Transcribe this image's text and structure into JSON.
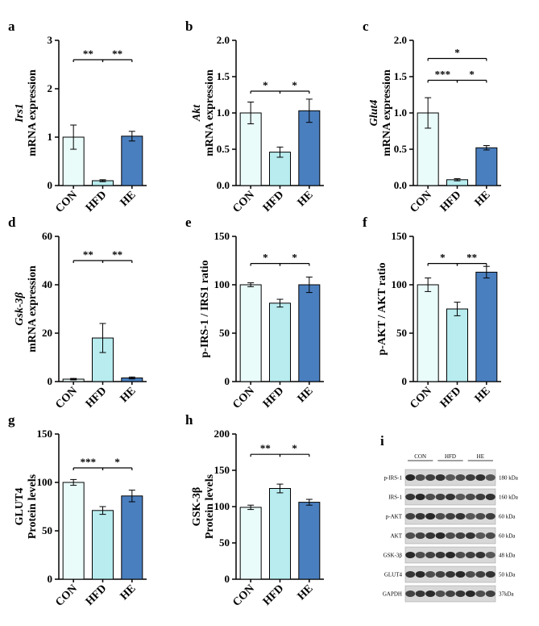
{
  "chart_data": [
    {
      "type": "bar",
      "panel": "a",
      "ylabel": [
        "Irs1",
        "mRNA expression"
      ],
      "ylabel_italic_first": true,
      "categories": [
        "CON",
        "HFD",
        "HE"
      ],
      "values": [
        1.0,
        0.1,
        1.02
      ],
      "errors": [
        0.25,
        0.02,
        0.1
      ],
      "colors": [
        "#eafcfa",
        "#b8ecef",
        "#4a7fbf"
      ],
      "ylim": [
        0,
        3
      ],
      "yticks": [
        0,
        1,
        2,
        3
      ],
      "significance": [
        {
          "between": [
            "CON",
            "HFD"
          ],
          "label": "**",
          "level": 2.6
        },
        {
          "between": [
            "HFD",
            "HE"
          ],
          "label": "**",
          "level": 2.6
        }
      ]
    },
    {
      "type": "bar",
      "panel": "b",
      "ylabel": [
        "Akt",
        "mRNA expression"
      ],
      "ylabel_italic_first": true,
      "categories": [
        "CON",
        "HFD",
        "HE"
      ],
      "values": [
        1.0,
        0.46,
        1.03
      ],
      "errors": [
        0.15,
        0.07,
        0.16
      ],
      "colors": [
        "#eafcfa",
        "#b8ecef",
        "#4a7fbf"
      ],
      "ylim": [
        0,
        2
      ],
      "yticks": [
        {
          "value": 0,
          "label": "0.0"
        },
        0.5,
        {
          "value": 1,
          "label": "1.0"
        },
        1.5,
        {
          "value": 2,
          "label": "2.0"
        }
      ],
      "significance": [
        {
          "between": [
            "CON",
            "HFD"
          ],
          "label": "*",
          "level": 1.3
        },
        {
          "between": [
            "HFD",
            "HE"
          ],
          "label": "*",
          "level": 1.3
        }
      ]
    },
    {
      "type": "bar",
      "panel": "c",
      "ylabel": [
        "Glut4",
        "mRNA expression"
      ],
      "ylabel_italic_first": true,
      "categories": [
        "CON",
        "HFD",
        "HE"
      ],
      "values": [
        1.0,
        0.08,
        0.52
      ],
      "errors": [
        0.21,
        0.015,
        0.03
      ],
      "colors": [
        "#eafcfa",
        "#b8ecef",
        "#4a7fbf"
      ],
      "ylim": [
        0,
        2
      ],
      "yticks": [
        {
          "value": 0,
          "label": "0.0"
        },
        0.5,
        {
          "value": 1,
          "label": "1.0"
        },
        1.5,
        {
          "value": 2,
          "label": "2.0"
        }
      ],
      "significance": [
        {
          "between": [
            "CON",
            "HE"
          ],
          "label": "*",
          "level": 1.75
        },
        {
          "between": [
            "CON",
            "HFD"
          ],
          "label": "***",
          "level": 1.45
        },
        {
          "between": [
            "HFD",
            "HE"
          ],
          "label": "*",
          "level": 1.45
        }
      ]
    },
    {
      "type": "bar",
      "panel": "d",
      "ylabel": [
        "Gsk-3β",
        "mRNA expression"
      ],
      "ylabel_italic_first": true,
      "categories": [
        "CON",
        "HFD",
        "HE"
      ],
      "values": [
        1,
        18,
        1.5
      ],
      "errors": [
        0.3,
        6,
        0.4
      ],
      "colors": [
        "#eafcfa",
        "#b8ecef",
        "#4a7fbf"
      ],
      "ylim": [
        0,
        60
      ],
      "yticks": [
        0,
        20,
        40,
        60
      ],
      "significance": [
        {
          "between": [
            "CON",
            "HFD"
          ],
          "label": "**",
          "level": 50
        },
        {
          "between": [
            "HFD",
            "HE"
          ],
          "label": "**",
          "level": 50
        }
      ]
    },
    {
      "type": "bar",
      "panel": "e",
      "ylabel": [
        "p-IRS-1 / IRS1 ratio"
      ],
      "ylabel_italic_first": false,
      "categories": [
        "CON",
        "HFD",
        "HE"
      ],
      "values": [
        100,
        81,
        100
      ],
      "errors": [
        2,
        4,
        8
      ],
      "colors": [
        "#eafcfa",
        "#b8ecef",
        "#4a7fbf"
      ],
      "ylim": [
        0,
        150
      ],
      "yticks": [
        0,
        50,
        100,
        150
      ],
      "significance": [
        {
          "between": [
            "CON",
            "HFD"
          ],
          "label": "*",
          "level": 122
        },
        {
          "between": [
            "HFD",
            "HE"
          ],
          "label": "*",
          "level": 122
        }
      ]
    },
    {
      "type": "bar",
      "panel": "f",
      "ylabel": [
        "p-AKT / AKT ratio"
      ],
      "ylabel_italic_first": false,
      "categories": [
        "CON",
        "HFD",
        "HE"
      ],
      "values": [
        100,
        75,
        113
      ],
      "errors": [
        7,
        7,
        6
      ],
      "colors": [
        "#eafcfa",
        "#b8ecef",
        "#4a7fbf"
      ],
      "ylim": [
        0,
        150
      ],
      "yticks": [
        0,
        50,
        100,
        150
      ],
      "significance": [
        {
          "between": [
            "CON",
            "HFD"
          ],
          "label": "*",
          "level": 122
        },
        {
          "between": [
            "HFD",
            "HE"
          ],
          "label": "**",
          "level": 122
        }
      ]
    },
    {
      "type": "bar",
      "panel": "g",
      "ylabel": [
        "GLUT4",
        "Protein levels"
      ],
      "ylabel_italic_first": false,
      "categories": [
        "CON",
        "HFD",
        "HE"
      ],
      "values": [
        100,
        71,
        86
      ],
      "errors": [
        3,
        4,
        6
      ],
      "colors": [
        "#eafcfa",
        "#b8ecef",
        "#4a7fbf"
      ],
      "ylim": [
        0,
        150
      ],
      "yticks": [
        0,
        50,
        100,
        150
      ],
      "significance": [
        {
          "between": [
            "CON",
            "HFD"
          ],
          "label": "***",
          "level": 115
        },
        {
          "between": [
            "HFD",
            "HE"
          ],
          "label": "*",
          "level": 115
        }
      ]
    },
    {
      "type": "bar",
      "panel": "h",
      "ylabel": [
        "GSK-3β",
        "Protein levels"
      ],
      "ylabel_italic_first": false,
      "categories": [
        "CON",
        "HFD",
        "HE"
      ],
      "values": [
        99,
        125,
        106
      ],
      "errors": [
        3,
        6,
        4
      ],
      "colors": [
        "#eafcfa",
        "#b8ecef",
        "#4a7fbf"
      ],
      "ylim": [
        0,
        200
      ],
      "yticks": [
        0,
        50,
        100,
        150,
        200
      ],
      "significance": [
        {
          "between": [
            "CON",
            "HFD"
          ],
          "label": "**",
          "level": 172
        },
        {
          "between": [
            "HFD",
            "HE"
          ],
          "label": "*",
          "level": 172
        }
      ]
    }
  ],
  "blot": {
    "panel": "i",
    "groups": [
      "CON",
      "HFD",
      "HE"
    ],
    "rows": [
      {
        "name": "p-IRS-1",
        "size": "180 kDa"
      },
      {
        "name": "IRS-1",
        "size": "160 kDa"
      },
      {
        "name": "p-AKT",
        "size": "60 kDa"
      },
      {
        "name": "AKT",
        "size": "60 kDa"
      },
      {
        "name": "GSK-3β",
        "size": "48 kDa"
      },
      {
        "name": "GLUT4",
        "size": "50 kDa"
      },
      {
        "name": "GAPDH",
        "size": "37kDa"
      }
    ]
  }
}
